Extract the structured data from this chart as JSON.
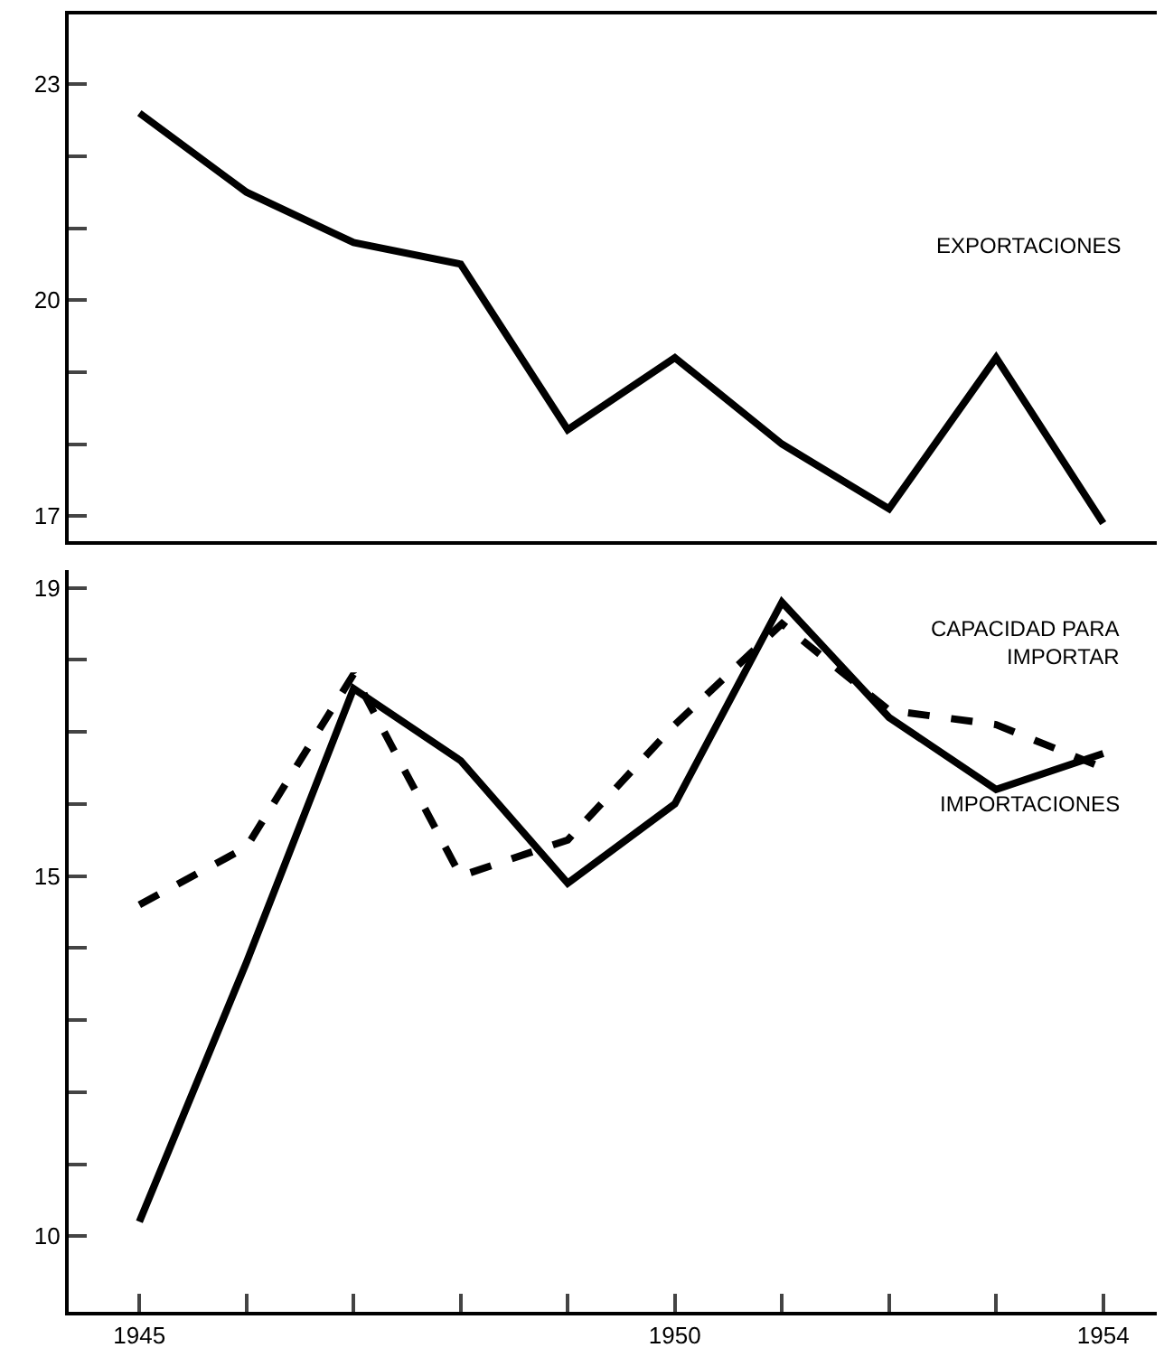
{
  "chart_data": [
    {
      "type": "line",
      "x": [
        1945,
        1946,
        1947,
        1948,
        1949,
        1950,
        1951,
        1952,
        1953,
        1954
      ],
      "xlim": [
        1944.34,
        1954.5
      ],
      "ylim": [
        16.65,
        23.97
      ],
      "yticks": [
        17,
        {
          "value": 18,
          "label": null
        },
        {
          "value": 19,
          "label": null
        },
        20,
        {
          "value": 21,
          "label": null
        },
        {
          "value": 22,
          "label": null
        },
        23
      ],
      "tick_labels": "y",
      "legend": false,
      "series": [
        {
          "name": "EXPORTACIONES",
          "color": "#000000",
          "line_style": "solid",
          "values": [
            22.6,
            21.5,
            20.8,
            20.5,
            18.2,
            19.2,
            18.0,
            17.1,
            19.2,
            16.9
          ]
        }
      ]
    },
    {
      "type": "line",
      "x": [
        1945,
        1946,
        1947,
        1948,
        1949,
        1950,
        1951,
        1952,
        1953,
        1954
      ],
      "xlim": [
        1944.34,
        1954.5
      ],
      "xticks": [
        1945,
        {
          "value": 1946,
          "label": null
        },
        {
          "value": 1947,
          "label": null
        },
        {
          "value": 1948,
          "label": null
        },
        {
          "value": 1949,
          "label": null
        },
        1950,
        {
          "value": 1951,
          "label": null
        },
        {
          "value": 1952,
          "label": null
        },
        {
          "value": 1953,
          "label": null
        },
        1954
      ],
      "ylim": [
        8.95,
        19.25
      ],
      "yticks": [
        10,
        {
          "value": 11,
          "label": null
        },
        {
          "value": 12,
          "label": null
        },
        {
          "value": 13,
          "label": null
        },
        {
          "value": 14,
          "label": null
        },
        15,
        {
          "value": 16,
          "label": null
        },
        {
          "value": 17,
          "label": null
        },
        {
          "value": 18,
          "label": null
        },
        19
      ],
      "legend": false,
      "series": [
        {
          "name": "CAPACIDAD PARA IMPORTAR",
          "color": "#000000",
          "line_style": "dashed",
          "values": [
            14.6,
            15.4,
            17.8,
            15.0,
            15.5,
            17.1,
            18.5,
            17.3,
            17.1,
            16.5
          ]
        },
        {
          "name": "IMPORTACIONES",
          "color": "#000000",
          "line_style": "solid",
          "values": [
            10.2,
            13.8,
            17.6,
            16.6,
            14.9,
            16.0,
            18.8,
            17.2,
            16.2,
            16.7
          ]
        }
      ]
    }
  ]
}
